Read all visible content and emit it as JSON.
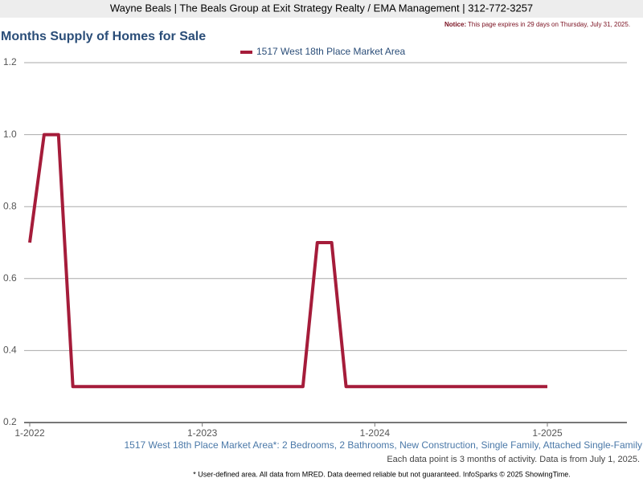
{
  "header": {
    "agent": "Wayne Beals | The Beals Group at Exit Strategy Realty / EMA Management | 312-772-3257",
    "notice_label": "Notice:",
    "notice_text": "This page expires in 29 days on Thursday, July 31, 2025."
  },
  "chart_data": {
    "type": "line",
    "title": "Months Supply of Homes for Sale",
    "categories": [
      "1-2022",
      null,
      null,
      null,
      null,
      null,
      null,
      null,
      null,
      null,
      null,
      null,
      "1-2023",
      null,
      null,
      null,
      null,
      null,
      null,
      null,
      null,
      null,
      null,
      null,
      "1-2024",
      null,
      null,
      null,
      null,
      null,
      null,
      null,
      null,
      null,
      null,
      null,
      "1-2025"
    ],
    "series": [
      {
        "name": "1517 West 18th Place Market Area",
        "color": "#a51c3a",
        "values": [
          0.7,
          1.0,
          1.0,
          0.3,
          0.3,
          0.3,
          0.3,
          0.3,
          0.3,
          0.3,
          0.3,
          0.3,
          0.3,
          0.3,
          0.3,
          0.3,
          0.3,
          0.3,
          0.3,
          0.3,
          0.7,
          0.7,
          0.3,
          0.3,
          0.3,
          0.3,
          0.3,
          0.3,
          0.3,
          0.3,
          0.3,
          0.3,
          0.3,
          0.3,
          0.3,
          0.3,
          0.3
        ]
      }
    ],
    "ylim": [
      0.2,
      1.2
    ],
    "yticks": [
      0.2,
      0.4,
      0.6,
      0.8,
      {
        "value": 1.0,
        "label": "1.0"
      },
      1.2
    ],
    "grid": true,
    "legend": "top",
    "caption": "1517 West 18th Place Market Area*: 2 Bedrooms, 2 Bathrooms, New Construction, Single Family, Attached Single-Family",
    "note": "Each data point is 3 months of activity. Data is from July 1, 2025.",
    "footer": "* User-defined area. All data from MRED. Data deemed reliable but not guaranteed. InfoSparks © 2025 ShowingTime."
  }
}
